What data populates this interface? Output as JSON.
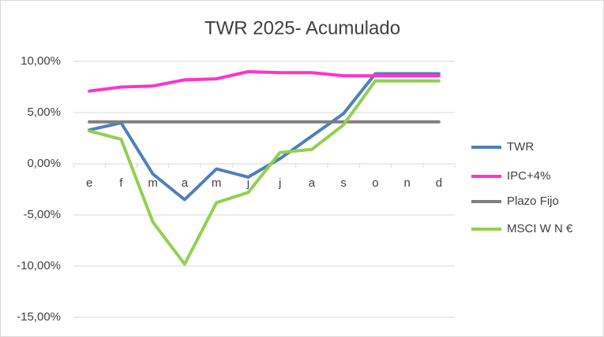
{
  "chart_data": {
    "type": "line",
    "title": "TWR 2025- Acumulado",
    "categories": [
      "e",
      "f",
      "m",
      "a",
      "m",
      "j",
      "j",
      "a",
      "s",
      "o",
      "n",
      "d"
    ],
    "series": [
      {
        "name": "TWR",
        "color": "#4f7fbc",
        "values": [
          3.3,
          4.0,
          -1.0,
          -3.5,
          -0.5,
          -1.3,
          0.5,
          2.7,
          4.9,
          8.8,
          8.8,
          8.8
        ]
      },
      {
        "name": "IPC+4%",
        "color": "#ff33cc",
        "values": [
          7.1,
          7.5,
          7.6,
          8.2,
          8.3,
          9.0,
          8.9,
          8.9,
          8.6,
          8.6,
          8.6,
          8.6
        ]
      },
      {
        "name": "Plazo Fijo",
        "color": "#7f7f7f",
        "values": [
          4.1,
          4.1,
          4.1,
          4.1,
          4.1,
          4.1,
          4.1,
          4.1,
          4.1,
          4.1,
          4.1,
          4.1
        ]
      },
      {
        "name": "MSCI W N €",
        "color": "#92d050",
        "values": [
          3.2,
          2.4,
          -5.7,
          -9.8,
          -3.8,
          -2.8,
          1.1,
          1.4,
          3.8,
          8.1,
          8.1,
          8.1
        ]
      }
    ],
    "ylim": [
      -15,
      10
    ],
    "yticks": [
      {
        "value": -15,
        "label": "-15,00%"
      },
      {
        "value": -10,
        "label": "-10,00%"
      },
      {
        "value": -5,
        "label": "-5,00%"
      },
      {
        "value": 0,
        "label": "0,00%"
      },
      {
        "value": 5,
        "label": "5,00%"
      },
      {
        "value": 10,
        "label": "10,00%"
      }
    ],
    "grid": true,
    "legend": "right"
  }
}
